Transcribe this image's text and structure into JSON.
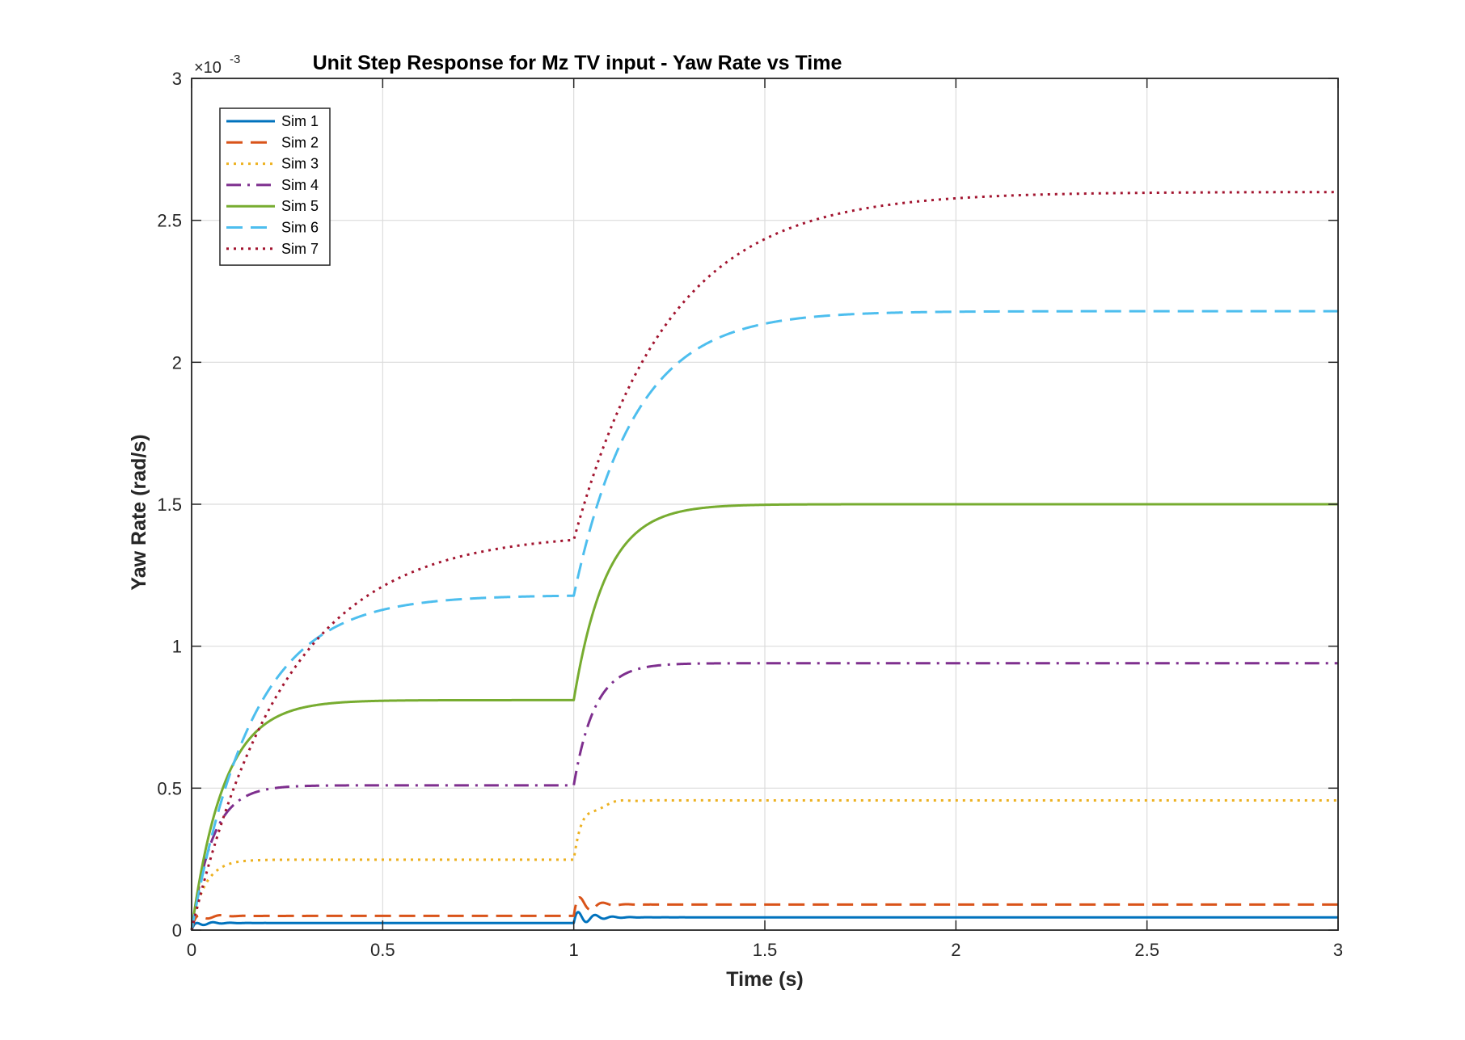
{
  "chart_data": {
    "type": "line",
    "title": "Unit Step Response for Mz TV input - Yaw Rate vs Time",
    "xlabel": "Time (s)",
    "ylabel": "Yaw Rate (rad/s)",
    "y_exponent_label": "×10",
    "y_exponent_power": "-3",
    "y_scale": 0.001,
    "xlim": [
      0,
      3
    ],
    "ylim": [
      0,
      0.003
    ],
    "x_ticks": [
      0,
      0.5,
      1,
      1.5,
      2,
      2.5,
      3
    ],
    "x_tick_labels": [
      "0",
      "0.5",
      "1",
      "1.5",
      "2",
      "2.5",
      "3"
    ],
    "y_ticks": [
      0,
      0.0005,
      0.001,
      0.0015,
      0.002,
      0.0025,
      0.003
    ],
    "y_tick_labels": [
      "0",
      "0.5",
      "1",
      "1.5",
      "2",
      "2.5",
      "3"
    ],
    "grid": true,
    "legend_position": "top-left",
    "step_times": [
      0,
      1
    ],
    "series": [
      {
        "name": "Sim 1",
        "color": "#0072BD",
        "dash": "solid",
        "level1": 2.5e-05,
        "level2": 4.5e-05,
        "tau1": 0.012,
        "tau2": 0.012,
        "osc": {
          "amp1": 1.2e-05,
          "amp2": 3.5e-05,
          "freq": 22,
          "decay": 0.04
        }
      },
      {
        "name": "Sim 2",
        "color": "#D95319",
        "dash": "dashed",
        "level1": 5e-05,
        "level2": 9e-05,
        "tau1": 0.014,
        "tau2": 0.014,
        "osc": {
          "amp1": 2.5e-05,
          "amp2": 6e-05,
          "freq": 16,
          "decay": 0.035
        }
      },
      {
        "name": "Sim 3",
        "color": "#EDB120",
        "dash": "dotted",
        "level1": 0.000248,
        "level2": 0.000457,
        "tau1": 0.035,
        "tau2": 0.03,
        "osc": {
          "amp1": 3e-06,
          "amp2": 3.5e-05,
          "freq": 10,
          "decay": 0.05
        }
      },
      {
        "name": "Sim 4",
        "color": "#7E2F8E",
        "dash": "dashdot",
        "level1": 0.00051,
        "level2": 0.00094,
        "tau1": 0.055,
        "tau2": 0.055
      },
      {
        "name": "Sim 5",
        "color": "#77AC30",
        "dash": "solid",
        "level1": 0.00081,
        "level2": 0.0015,
        "tau1": 0.085,
        "tau2": 0.085
      },
      {
        "name": "Sim 6",
        "color": "#4DBEEE",
        "dash": "dashed",
        "level1": 0.00118,
        "level2": 0.00218,
        "tau1": 0.16,
        "tau2": 0.16
      },
      {
        "name": "Sim 7",
        "color": "#A2142F",
        "dash": "dotted",
        "level1": 0.0014,
        "level2": 0.0026,
        "tau1": 0.25,
        "tau2": 0.25
      }
    ]
  }
}
